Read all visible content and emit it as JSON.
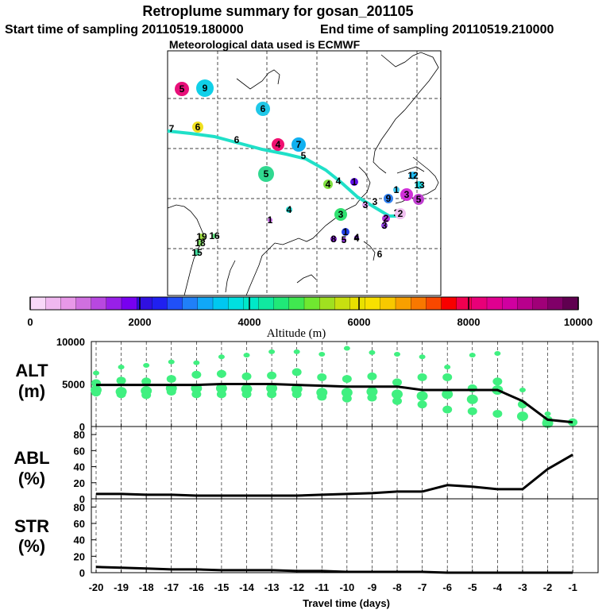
{
  "header": {
    "title": "Retroplume summary for gosan_201105",
    "start_label": "Start time of sampling 20110519.180000",
    "end_label": "End time of sampling 20110519.210000",
    "met_label": "Meteorological data used is ECMWF"
  },
  "colorbar": {
    "label": "Altitude (m)",
    "ticks": [
      "0",
      "2000",
      "4000",
      "6000",
      "8000",
      "10000"
    ],
    "colors": [
      "#f8d8f8",
      "#f0b8f0",
      "#e898e8",
      "#d070e0",
      "#b848e0",
      "#9820e8",
      "#7800f0",
      "#3010e0",
      "#2020f0",
      "#2050f8",
      "#2080f8",
      "#10a8f8",
      "#00c8f0",
      "#00e0e0",
      "#00e8c8",
      "#10e8a0",
      "#20e878",
      "#40e850",
      "#70e830",
      "#a0e020",
      "#c8e010",
      "#e8e000",
      "#f8e000",
      "#f8c800",
      "#f8a000",
      "#f87800",
      "#f84800",
      "#f80000",
      "#f00050",
      "#e80078",
      "#e00090",
      "#d000a0",
      "#b8008c",
      "#a00078",
      "#800068",
      "#600050"
    ]
  },
  "map": {
    "track_markers": [
      {
        "label": "7",
        "color": ""
      },
      {
        "label": "6",
        "color": ""
      },
      {
        "label": "5",
        "color": ""
      },
      {
        "label": "4",
        "color": ""
      },
      {
        "label": "3",
        "color": ""
      },
      {
        "label": "2",
        "color": ""
      }
    ],
    "day_markers": [
      {
        "label": "5",
        "color": "#e8107a"
      },
      {
        "label": "9",
        "color": "#10d0e8"
      },
      {
        "label": "6",
        "color": "#20c8e8"
      },
      {
        "label": "6",
        "color": "#f0e020"
      },
      {
        "label": "4",
        "color": "#f01070"
      },
      {
        "label": "7",
        "color": "#10b0f0"
      },
      {
        "label": "5",
        "color": "#30d890"
      },
      {
        "label": "4",
        "color": "#80e040"
      },
      {
        "label": "1",
        "color": "#6010e8"
      },
      {
        "label": "12",
        "color": "#20b8f0"
      },
      {
        "label": "1",
        "color": "#40c8f0"
      },
      {
        "label": "13",
        "color": "#20d8e0"
      },
      {
        "label": "3",
        "color": "#d030d8"
      },
      {
        "label": "5",
        "color": "#c040d0"
      },
      {
        "label": "9",
        "color": "#3080f0"
      },
      {
        "label": "4",
        "color": "#20d8d0"
      },
      {
        "label": "3",
        "color": "#30e070"
      },
      {
        "label": "2",
        "color": "#f0c0f0"
      },
      {
        "label": "2",
        "color": "#b030d8"
      },
      {
        "label": "3",
        "color": "#9040e0"
      },
      {
        "label": "4",
        "color": "#8030d0"
      },
      {
        "label": "1",
        "color": "#2040e8"
      },
      {
        "label": "8",
        "color": "#8020c8"
      },
      {
        "label": "5",
        "color": "#9030d8"
      },
      {
        "label": "4",
        "color": "#ffffff"
      },
      {
        "label": "6",
        "color": "#ffffff"
      },
      {
        "label": "19",
        "color": "#a0e040"
      },
      {
        "label": "16",
        "color": "#60e080"
      },
      {
        "label": "18",
        "color": "#80e060"
      },
      {
        "label": "15",
        "color": "#40e0a0"
      },
      {
        "label": "1",
        "color": "#c060e0"
      },
      {
        "label": "3",
        "color": "#e0a0f0"
      }
    ]
  },
  "chart_data": [
    {
      "type": "scatter",
      "panel_label_1": "ALT",
      "panel_label_2": "(m)",
      "ylim": [
        0,
        10000
      ],
      "yticks": [
        "10000",
        "5000",
        "0"
      ],
      "x": [
        -20,
        -19,
        -18,
        -17,
        -16,
        -15,
        -14,
        -13,
        -12,
        -11,
        -10,
        -9,
        -8,
        -7,
        -6,
        -5,
        -4,
        -3,
        -2,
        -1
      ],
      "mean_altitude": [
        4900,
        4900,
        4900,
        4900,
        4900,
        5000,
        5000,
        5000,
        4900,
        4800,
        4700,
        4700,
        4700,
        4300,
        4300,
        4300,
        4300,
        3000,
        800,
        500
      ],
      "clusters": [
        [
          6300,
          5100,
          4300,
          4000
        ],
        [
          7000,
          5400,
          4100,
          3800
        ],
        [
          7200,
          5300,
          4200,
          3700
        ],
        [
          7600,
          5600,
          4500,
          4100
        ],
        [
          7500,
          6100,
          4500,
          3800
        ],
        [
          8200,
          6200,
          4500,
          3800
        ],
        [
          8400,
          5900,
          4400,
          3800
        ],
        [
          8800,
          6000,
          4500,
          3800
        ],
        [
          8800,
          6400,
          4400,
          3800
        ],
        [
          8500,
          5800,
          4000,
          3500
        ],
        [
          9200,
          5600,
          4000,
          3300
        ],
        [
          8700,
          5900,
          4100,
          3400
        ],
        [
          8500,
          5200,
          3800,
          3000
        ],
        [
          8200,
          5800,
          3600,
          2600
        ],
        [
          7000,
          5800,
          3800,
          2000
        ],
        [
          8400,
          4500,
          3200,
          1800
        ],
        [
          8600,
          5300,
          4300,
          1500
        ],
        [
          4300,
          2600,
          1200
        ],
        [
          1500,
          800,
          400
        ],
        [
          600,
          500
        ]
      ]
    },
    {
      "type": "line",
      "panel_label_1": "ABL",
      "panel_label_2": "(%)",
      "ylim": [
        0,
        90
      ],
      "yticks": [
        "80",
        "60",
        "40",
        "20",
        "0"
      ],
      "x": [
        -20,
        -19,
        -18,
        -17,
        -16,
        -15,
        -14,
        -13,
        -12,
        -11,
        -10,
        -9,
        -8,
        -7,
        -6,
        -5,
        -4,
        -3,
        -2,
        -1
      ],
      "values": [
        6,
        6,
        5,
        5,
        4,
        4,
        4,
        4,
        4,
        5,
        6,
        7,
        9,
        9,
        17,
        15,
        12,
        12,
        37,
        55
      ]
    },
    {
      "type": "line",
      "panel_label_1": "STR",
      "panel_label_2": "(%)",
      "ylim": [
        0,
        90
      ],
      "yticks": [
        "80",
        "60",
        "40",
        "20",
        "0"
      ],
      "x": [
        -20,
        -19,
        -18,
        -17,
        -16,
        -15,
        -14,
        -13,
        -12,
        -11,
        -10,
        -9,
        -8,
        -7,
        -6,
        -5,
        -4,
        -3,
        -2,
        -1
      ],
      "values": [
        7,
        6,
        5,
        4,
        4,
        3,
        3,
        3,
        2,
        2,
        1,
        1,
        1,
        1,
        0,
        0,
        0,
        0,
        0,
        0
      ],
      "xlabel": "Travel time (days)",
      "xticks": [
        "-20",
        "-19",
        "-18",
        "-17",
        "-16",
        "-15",
        "-14",
        "-13",
        "-12",
        "-11",
        "-10",
        "-9",
        "-8",
        "-7",
        "-6",
        "-5",
        "-4",
        "-3",
        "-2",
        "-1"
      ]
    }
  ]
}
